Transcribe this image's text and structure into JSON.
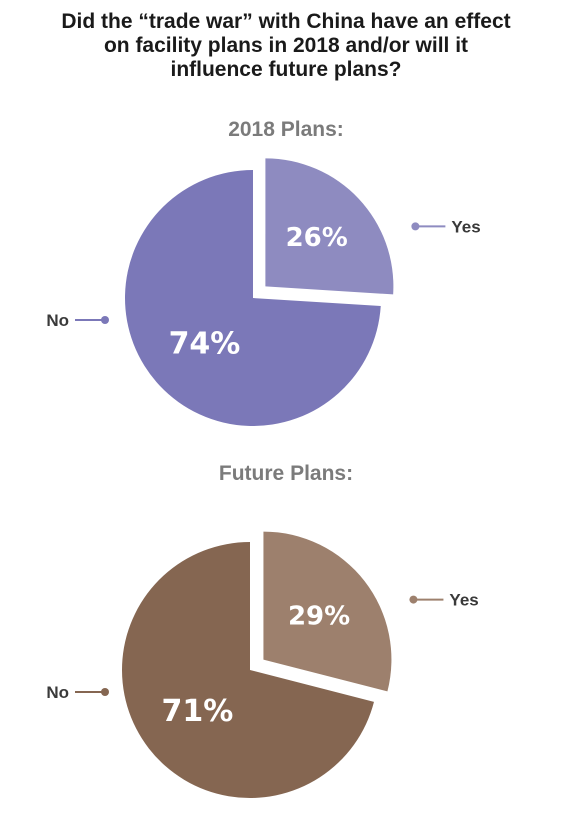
{
  "title_lines": [
    "Did the “trade war” with China have an effect",
    "on facility plans in 2018 and/or will it",
    "influence future plans?"
  ],
  "chart_data": [
    {
      "type": "pie",
      "title": "2018 Plans:",
      "slices": [
        {
          "label": "Yes",
          "value": 26,
          "display": "26%",
          "color": "#8e8bc0",
          "exploded": true
        },
        {
          "label": "No",
          "value": 74,
          "display": "74%",
          "color": "#7b78b8",
          "exploded": false
        }
      ]
    },
    {
      "type": "pie",
      "title": "Future Plans:",
      "slices": [
        {
          "label": "Yes",
          "value": 29,
          "display": "29%",
          "color": "#9d806d",
          "exploded": true
        },
        {
          "label": "No",
          "value": 71,
          "display": "71%",
          "color": "#856651",
          "exploded": false
        }
      ]
    }
  ]
}
